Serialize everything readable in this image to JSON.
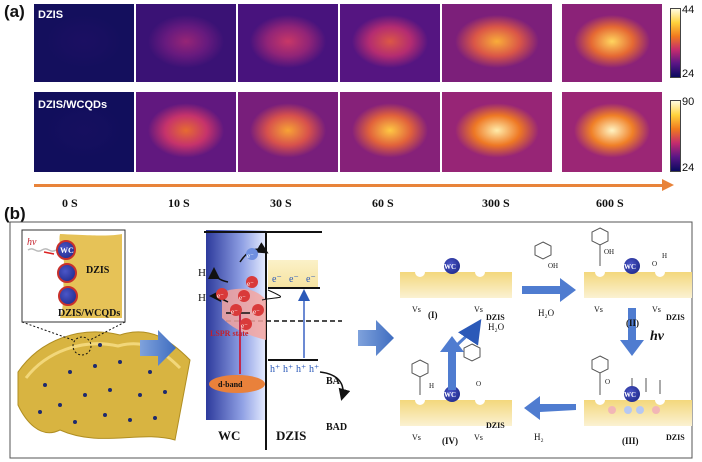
{
  "panel_a": {
    "label": "(a)",
    "rows": [
      {
        "label": "DZIS",
        "scale_max": "44",
        "scale_min": "24",
        "intensity": [
          0.05,
          0.4,
          0.52,
          0.62,
          0.82,
          0.9
        ]
      },
      {
        "label": "DZIS/WCQDs",
        "scale_max": "90",
        "scale_min": "24",
        "intensity": [
          0.03,
          0.68,
          0.8,
          0.87,
          0.96,
          0.98
        ]
      }
    ],
    "times": [
      "0 S",
      "10 S",
      "30 S",
      "60 S",
      "300 S",
      "600 S"
    ]
  },
  "panel_b": {
    "label": "(b)",
    "left": {
      "hv": "hv",
      "wc": "WC",
      "dzis": "DZIS",
      "caption": "DZIS/WCQDs"
    },
    "middle": {
      "h_upper": "H",
      "h_lower": "H",
      "electron": "e⁻",
      "hole": "h⁺",
      "lspr": "LSPR state",
      "dband": "d-band",
      "ba": "BA",
      "bad": "BAD",
      "wc": "WC",
      "dzis": "DZIS"
    },
    "right": {
      "vs": "Vs",
      "wc": "WC",
      "dzis": "DZIS",
      "h2o": "H₂O",
      "h2": "H₂",
      "hv": "hv",
      "oh": "OH",
      "h": "H",
      "o": "O",
      "steps": [
        "(I)",
        "(II)",
        "(III)",
        "(IV)"
      ]
    }
  }
}
